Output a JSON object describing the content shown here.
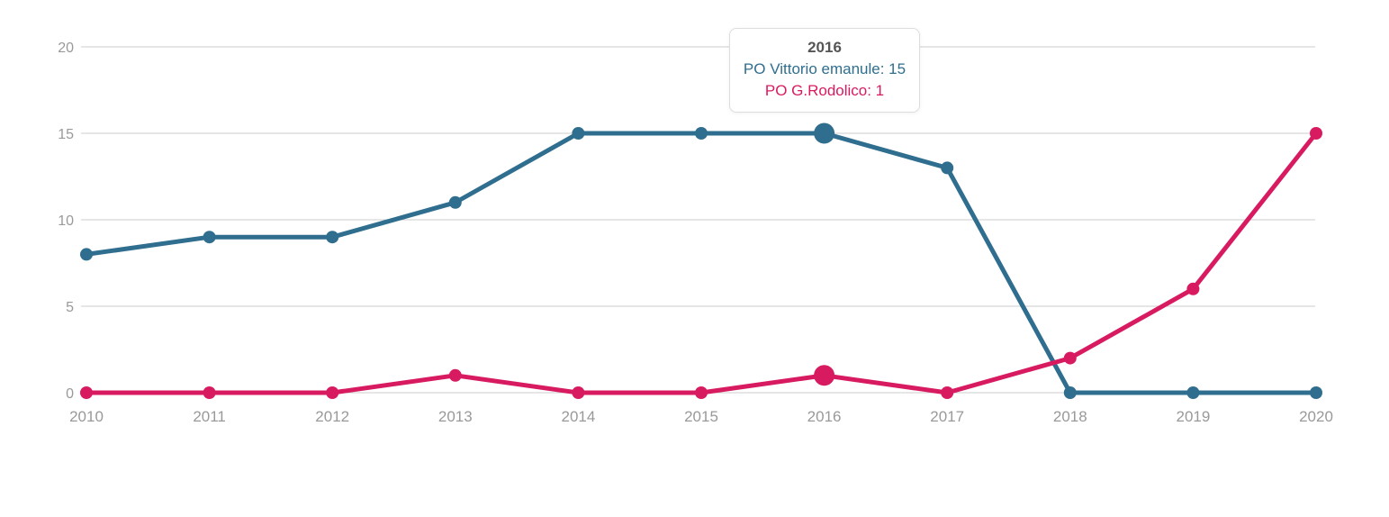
{
  "chart_data": {
    "type": "line",
    "title": "",
    "categories": [
      "2010",
      "2011",
      "2012",
      "2013",
      "2014",
      "2015",
      "2016",
      "2017",
      "2018",
      "2019",
      "2020"
    ],
    "series": [
      {
        "name": "PO Vittorio emanule",
        "color": "#2f6e8e",
        "values": [
          8,
          9,
          9,
          11,
          15,
          15,
          15,
          13,
          0,
          0,
          0
        ]
      },
      {
        "name": "PO G.Rodolico",
        "color": "#d81b60",
        "values": [
          0,
          0,
          0,
          1,
          0,
          0,
          1,
          0,
          2,
          6,
          15
        ]
      }
    ],
    "xlabel": "",
    "ylabel": "",
    "yticks": [
      0,
      5,
      10,
      15,
      20
    ],
    "ylim": [
      0,
      20
    ],
    "grid": "horizontal-only",
    "legend_position": "none",
    "axis_label_color": "#999999",
    "grid_color": "#cccccc",
    "highlight_category": "2016",
    "highlight_index": 6
  },
  "tooltip": {
    "title": "2016",
    "lines": [
      {
        "text": "PO Vittorio emanule: 15",
        "color": "#2f6e8e"
      },
      {
        "text": "PO G.Rodolico: 1",
        "color": "#d81b60"
      }
    ]
  }
}
